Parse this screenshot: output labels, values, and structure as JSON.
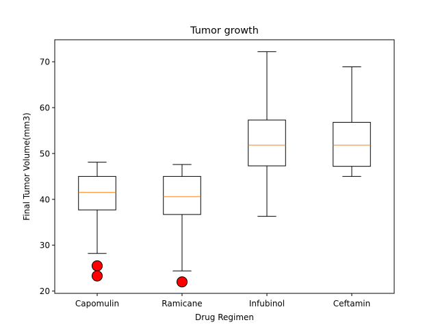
{
  "chart_data": {
    "type": "box",
    "title": "Tumor growth",
    "xlabel": "Drug Regimen",
    "ylabel": "Final Tumor Volume(mm3)",
    "ylim": [
      19.5,
      74.8
    ],
    "yticks": [
      20,
      30,
      40,
      50,
      60,
      70
    ],
    "grid": false,
    "categories": [
      "Capomulin",
      "Ramicane",
      "Infubinol",
      "Ceftamin"
    ],
    "boxes": [
      {
        "category": "Capomulin",
        "whisker_low": 28.2,
        "q1": 37.7,
        "median": 41.5,
        "q3": 45.0,
        "whisker_high": 48.1,
        "outliers": [
          25.5,
          23.3
        ]
      },
      {
        "category": "Ramicane",
        "whisker_low": 24.4,
        "q1": 36.7,
        "median": 40.6,
        "q3": 45.0,
        "whisker_high": 47.6,
        "outliers": [
          22.0
        ]
      },
      {
        "category": "Infubinol",
        "whisker_low": 36.3,
        "q1": 47.3,
        "median": 51.8,
        "q3": 57.3,
        "whisker_high": 72.2,
        "outliers": []
      },
      {
        "category": "Ceftamin",
        "whisker_low": 45.0,
        "q1": 47.2,
        "median": 51.8,
        "q3": 56.8,
        "whisker_high": 68.9,
        "outliers": []
      }
    ],
    "colors": {
      "box": "#000000",
      "median": "#ff7f0e",
      "outlier_fill": "#ff0000",
      "outlier_edge": "#000000"
    }
  }
}
